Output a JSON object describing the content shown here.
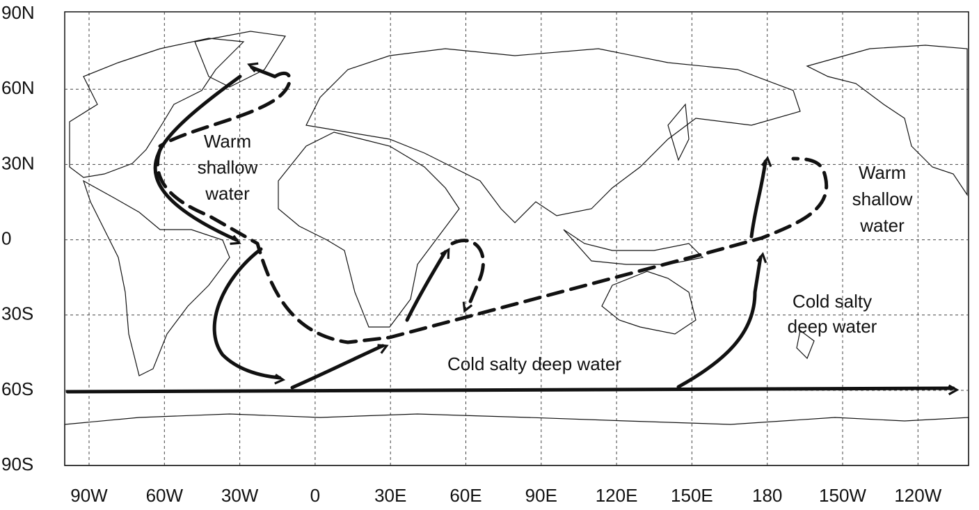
{
  "map": {
    "x_labels": [
      "90W",
      "60W",
      "30W",
      "0",
      "30E",
      "60E",
      "90E",
      "120E",
      "150E",
      "180",
      "150W",
      "120W"
    ],
    "y_labels": [
      "90N",
      "60N",
      "30N",
      "0",
      "30S",
      "60S",
      "90S"
    ],
    "annotations": [
      {
        "lines": [
          "Warm",
          "shallow",
          "water"
        ]
      },
      {
        "lines": [
          "Warm",
          "shallow",
          "water"
        ]
      },
      {
        "lines": [
          "Cold salty deep water"
        ]
      },
      {
        "lines": [
          "Cold salty",
          "deep water"
        ]
      }
    ]
  }
}
